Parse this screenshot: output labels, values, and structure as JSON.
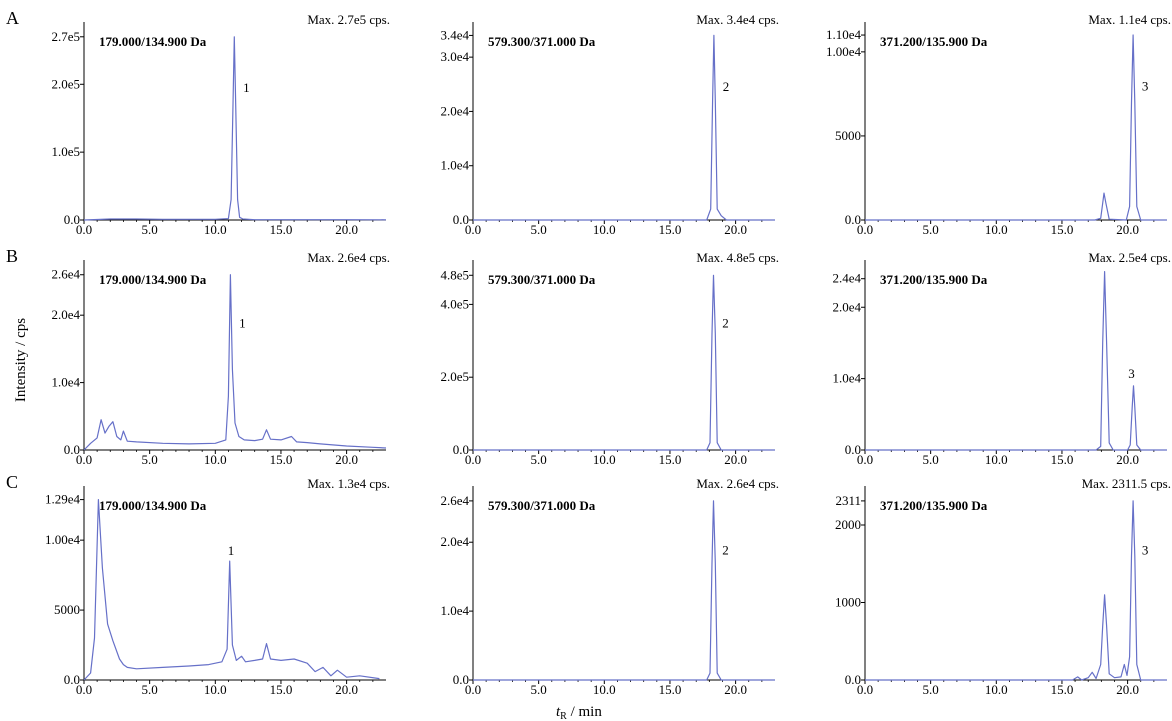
{
  "figure": {
    "y_axis_title": "Intensity / cps",
    "x_axis_title_main": "t",
    "x_axis_title_sub": "R",
    "x_axis_title_unit": " / min",
    "accent_color": "#6670c8"
  },
  "chart_data": [
    {
      "row": "A",
      "col": 0,
      "row_label": "A",
      "type": "line",
      "title": "179.000/134.900 Da",
      "max_label": "Max. 2.7e5 cps.",
      "peak_label": "1",
      "xlim": [
        0,
        23
      ],
      "ylim": [
        0,
        280000
      ],
      "x_ticks": [
        0,
        5,
        10,
        15,
        20
      ],
      "x_tick_labels": [
        "0.0",
        "5.0",
        "10.0",
        "15.0",
        "20.0"
      ],
      "y_ticks": [
        0,
        100000,
        200000,
        270000
      ],
      "y_tick_labels": [
        "0.0",
        "1.0e5",
        "2.0e5",
        "2.7e5"
      ],
      "x": [
        0,
        2,
        4,
        6,
        8,
        10,
        11,
        11.2,
        11.35,
        11.45,
        11.55,
        11.7,
        11.85,
        12.1,
        13,
        16,
        20,
        23
      ],
      "y": [
        0,
        1500,
        1500,
        1000,
        1000,
        1000,
        2000,
        30000,
        170000,
        270000,
        170000,
        30000,
        4000,
        1500,
        500,
        500,
        500,
        300
      ]
    },
    {
      "row": "A",
      "col": 1,
      "row_label": "",
      "type": "line",
      "title": "579.300/371.000 Da",
      "max_label": "Max. 3.4e4 cps.",
      "peak_label": "2",
      "xlim": [
        0,
        23
      ],
      "ylim": [
        0,
        35000
      ],
      "x_ticks": [
        0,
        5,
        10,
        15,
        20
      ],
      "x_tick_labels": [
        "0.0",
        "5.0",
        "10.0",
        "15.0",
        "20.0"
      ],
      "y_ticks": [
        0,
        10000,
        20000,
        30000,
        34000
      ],
      "y_tick_labels": [
        "0.0",
        "1.0e4",
        "2.0e4",
        "3.0e4",
        "3.4e4"
      ],
      "x": [
        0,
        10,
        17.8,
        18.1,
        18.25,
        18.35,
        18.45,
        18.6,
        18.9,
        19.3,
        23
      ],
      "y": [
        0,
        0,
        0,
        2000,
        22000,
        34000,
        22000,
        2000,
        800,
        0,
        0
      ]
    },
    {
      "row": "A",
      "col": 2,
      "row_label": "",
      "type": "line",
      "title": "371.200/135.900 Da",
      "max_label": "Max. 1.1e4 cps.",
      "peak_label": "3",
      "xlim": [
        0,
        23
      ],
      "ylim": [
        0,
        11300
      ],
      "x_ticks": [
        0,
        5,
        10,
        15,
        20
      ],
      "x_tick_labels": [
        "0.0",
        "5.0",
        "10.0",
        "15.0",
        "20.0"
      ],
      "y_ticks": [
        0,
        5000,
        10000,
        11000
      ],
      "y_tick_labels": [
        "0.0",
        "5000",
        "1.00e4",
        "1.10e4"
      ],
      "x": [
        0,
        17.5,
        17.95,
        18.1,
        18.2,
        18.35,
        18.6,
        19.9,
        20.15,
        20.3,
        20.42,
        20.55,
        20.7,
        21,
        23
      ],
      "y": [
        0,
        0,
        100,
        1000,
        1600,
        1000,
        50,
        0,
        800,
        7000,
        11000,
        7000,
        800,
        0,
        0
      ]
    },
    {
      "row": "B",
      "col": 0,
      "row_label": "B",
      "type": "line",
      "title": "179.000/134.900 Da",
      "max_label": "Max. 2.6e4 cps.",
      "peak_label": "1",
      "xlim": [
        0,
        23
      ],
      "ylim": [
        0,
        27000
      ],
      "x_ticks": [
        0,
        5,
        10,
        15,
        20
      ],
      "x_tick_labels": [
        "0.0",
        "5.0",
        "10.0",
        "15.0",
        "20.0"
      ],
      "y_ticks": [
        0,
        10000,
        20000,
        26000
      ],
      "y_tick_labels": [
        "0.0",
        "1.0e4",
        "2.0e4",
        "2.6e4"
      ],
      "x": [
        0,
        0.5,
        1,
        1.3,
        1.6,
        1.9,
        2.2,
        2.5,
        2.8,
        3.0,
        3.3,
        4,
        6,
        8,
        10,
        10.8,
        11.0,
        11.15,
        11.3,
        11.5,
        11.8,
        12.2,
        13,
        13.6,
        13.9,
        14.2,
        15,
        15.8,
        16.2,
        17,
        18,
        20,
        22,
        23
      ],
      "y": [
        0,
        1000,
        1800,
        4500,
        2500,
        3500,
        4200,
        2000,
        1500,
        2800,
        1300,
        1200,
        1000,
        900,
        1000,
        1500,
        8000,
        26000,
        12000,
        4000,
        2000,
        1500,
        1400,
        1600,
        3000,
        1600,
        1500,
        2000,
        1200,
        1100,
        900,
        600,
        400,
        300
      ]
    },
    {
      "row": "B",
      "col": 1,
      "row_label": "",
      "type": "line",
      "title": "579.300/371.000 Da",
      "max_label": "Max. 4.8e5 cps.",
      "peak_label": "2",
      "xlim": [
        0,
        23
      ],
      "ylim": [
        0,
        500000
      ],
      "x_ticks": [
        0,
        5,
        10,
        15,
        20
      ],
      "x_tick_labels": [
        "0.0",
        "5.0",
        "10.0",
        "15.0",
        "20.0"
      ],
      "y_ticks": [
        0,
        200000,
        400000,
        480000
      ],
      "y_tick_labels": [
        "0.0",
        "2.0e5",
        "4.0e5",
        "4.8e5"
      ],
      "x": [
        0,
        10,
        17.8,
        18.05,
        18.2,
        18.32,
        18.45,
        18.6,
        18.9,
        23
      ],
      "y": [
        0,
        0,
        0,
        20000,
        320000,
        480000,
        320000,
        20000,
        0,
        0
      ]
    },
    {
      "row": "B",
      "col": 2,
      "row_label": "",
      "type": "line",
      "title": "371.200/135.900 Da",
      "max_label": "Max. 2.5e4 cps.",
      "peak_label": "3",
      "xlim": [
        0,
        23
      ],
      "ylim": [
        0,
        25500
      ],
      "x_ticks": [
        0,
        5,
        10,
        15,
        20
      ],
      "x_tick_labels": [
        "0.0",
        "5.0",
        "10.0",
        "15.0",
        "20.0"
      ],
      "y_ticks": [
        0,
        10000,
        20000,
        24000
      ],
      "y_tick_labels": [
        "0.0",
        "1.0e4",
        "2.0e4",
        "2.4e4"
      ],
      "x": [
        0,
        17.6,
        17.95,
        18.1,
        18.25,
        18.4,
        18.6,
        18.9,
        20.0,
        20.2,
        20.35,
        20.45,
        20.55,
        20.7,
        21,
        23
      ],
      "y": [
        0,
        0,
        500,
        15000,
        25000,
        15000,
        1000,
        0,
        0,
        700,
        6000,
        9000,
        6000,
        700,
        0,
        0
      ]
    },
    {
      "row": "C",
      "col": 0,
      "row_label": "C",
      "type": "line",
      "title": "179.000/134.900 Da",
      "max_label": "Max. 1.3e4 cps.",
      "peak_label": "1",
      "xlim": [
        0,
        23
      ],
      "ylim": [
        0,
        13300
      ],
      "x_ticks": [
        0,
        5,
        10,
        15,
        20
      ],
      "x_tick_labels": [
        "0.0",
        "5.0",
        "10.0",
        "15.0",
        "20.0"
      ],
      "y_ticks": [
        0,
        5000,
        10000,
        12900
      ],
      "y_tick_labels": [
        "0.0",
        "5000",
        "1.00e4",
        "1.29e4"
      ],
      "x": [
        0,
        0.5,
        0.8,
        1.1,
        1.4,
        1.8,
        2.2,
        2.7,
        3.0,
        3.3,
        4,
        6,
        8,
        9.5,
        10.5,
        10.9,
        11.1,
        11.3,
        11.6,
        12.0,
        12.3,
        13,
        13.6,
        13.9,
        14.2,
        15,
        16,
        17,
        17.6,
        18.2,
        18.8,
        19.3,
        20,
        21,
        22.5
      ],
      "y": [
        0,
        500,
        3000,
        12900,
        8000,
        4000,
        2800,
        1500,
        1100,
        900,
        800,
        900,
        1000,
        1100,
        1300,
        2200,
        8500,
        2500,
        1400,
        1700,
        1300,
        1400,
        1500,
        2600,
        1500,
        1400,
        1500,
        1200,
        600,
        900,
        300,
        700,
        200,
        300,
        100
      ]
    },
    {
      "row": "C",
      "col": 1,
      "row_label": "",
      "type": "line",
      "title": "579.300/371.000 Da",
      "max_label": "Max. 2.6e4 cps.",
      "peak_label": "2",
      "xlim": [
        0,
        23
      ],
      "ylim": [
        0,
        27000
      ],
      "x_ticks": [
        0,
        5,
        10,
        15,
        20
      ],
      "x_tick_labels": [
        "0.0",
        "5.0",
        "10.0",
        "15.0",
        "20.0"
      ],
      "y_ticks": [
        0,
        10000,
        20000,
        26000
      ],
      "y_tick_labels": [
        "0.0",
        "1.0e4",
        "2.0e4",
        "2.6e4"
      ],
      "x": [
        0,
        10,
        17.8,
        18.05,
        18.2,
        18.32,
        18.45,
        18.6,
        18.9,
        23
      ],
      "y": [
        0,
        0,
        0,
        1000,
        17000,
        26000,
        17000,
        1000,
        0,
        0
      ]
    },
    {
      "row": "C",
      "col": 2,
      "row_label": "",
      "type": "line",
      "title": "371.200/135.900 Da",
      "max_label": "Max. 2311.5 cps.",
      "peak_label": "3",
      "xlim": [
        0,
        23
      ],
      "ylim": [
        0,
        2400
      ],
      "x_ticks": [
        0,
        5,
        10,
        15,
        20
      ],
      "x_tick_labels": [
        "0.0",
        "5.0",
        "10.0",
        "15.0",
        "20.0"
      ],
      "y_ticks": [
        0,
        1000,
        2000,
        2311
      ],
      "y_tick_labels": [
        "0.0",
        "1000",
        "2000",
        "2311"
      ],
      "x": [
        0,
        15.8,
        16.2,
        16.5,
        17.0,
        17.3,
        17.6,
        17.95,
        18.1,
        18.25,
        18.4,
        18.6,
        19.0,
        19.5,
        19.75,
        19.95,
        20.15,
        20.3,
        20.42,
        20.55,
        20.7,
        21,
        23
      ],
      "y": [
        0,
        0,
        40,
        0,
        30,
        100,
        20,
        200,
        700,
        1100,
        700,
        80,
        30,
        40,
        200,
        60,
        300,
        1600,
        2311,
        1600,
        200,
        0,
        0
      ]
    }
  ]
}
